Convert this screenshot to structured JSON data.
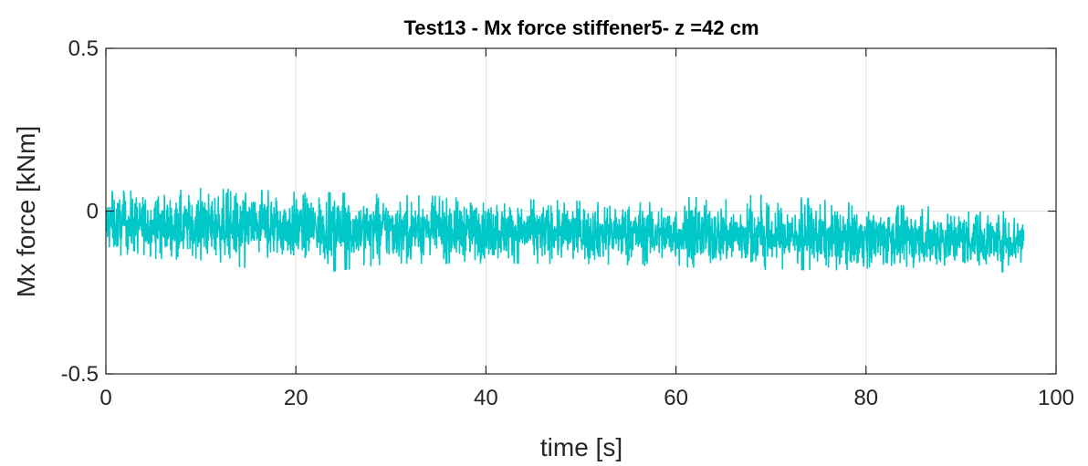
{
  "chart_data": {
    "type": "line",
    "title": "Test13 - Mx force stiffener5- z =42 cm",
    "xlabel": "time [s]",
    "ylabel": "Mx force [kNm]",
    "xlim": [
      0,
      100
    ],
    "ylim": [
      -0.5,
      0.5
    ],
    "xticks": [
      0,
      20,
      40,
      60,
      80,
      100
    ],
    "xtick_labels": [
      "0",
      "20",
      "40",
      "60",
      "80",
      "100"
    ],
    "yticks": [
      -0.5,
      0,
      0.5
    ],
    "ytick_labels": [
      "-0.5",
      "0",
      "0.5"
    ],
    "grid": true,
    "legend": "none",
    "series": [
      {
        "color": "#00c8c8",
        "x_start": 0,
        "x_end": 96.6,
        "description_points": {
          "x": [
            0,
            10,
            20,
            30,
            40,
            50,
            60,
            70,
            80,
            90,
            96.6
          ],
          "mean": [
            -0.04,
            -0.045,
            -0.05,
            -0.055,
            -0.06,
            -0.065,
            -0.07,
            -0.075,
            -0.08,
            -0.085,
            -0.09
          ],
          "min": [
            -0.14,
            -0.15,
            -0.2,
            -0.16,
            -0.16,
            -0.16,
            -0.17,
            -0.18,
            -0.18,
            -0.2,
            -0.2
          ],
          "max": [
            0.06,
            0.07,
            0.06,
            0.05,
            0.04,
            0.03,
            0.04,
            0.05,
            0.02,
            0.01,
            0.0
          ]
        }
      }
    ]
  }
}
